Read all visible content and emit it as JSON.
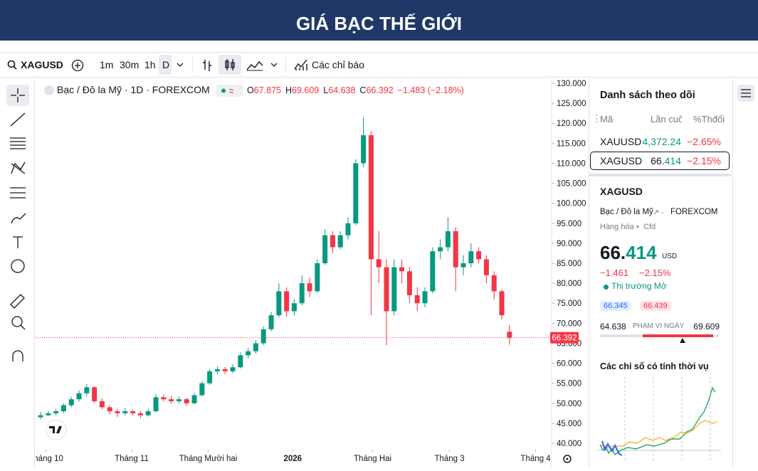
{
  "header": {
    "title": "GIÁ BẠC THẾ GIỚI"
  },
  "toolbar": {
    "symbol": "XAGUSD",
    "intervals": [
      "1m",
      "30m",
      "1h",
      "D"
    ],
    "indicators": "Các chỉ báo"
  },
  "chart_data": {
    "type": "candlestick",
    "legend": {
      "name": "Bạc / Đô la Mỹ · 1D · FOREXCOM",
      "ohlc": [
        {
          "prefix": "O",
          "value": 67.875
        },
        {
          "prefix": "H",
          "value": 69.609
        },
        {
          "prefix": "L",
          "value": 64.638
        },
        {
          "prefix": "C",
          "value": 66.392
        }
      ],
      "change": "−1.483 (−2.18%)"
    },
    "up_color": "#089981",
    "down_color": "#f23645",
    "candles": [
      [
        46.5,
        47.8,
        46,
        47
      ],
      [
        47,
        48,
        46.8,
        47.5
      ],
      [
        47.5,
        48.6,
        47,
        48
      ],
      [
        48,
        50,
        47.6,
        49.5
      ],
      [
        49.5,
        51.6,
        49,
        51
      ],
      [
        51,
        53.2,
        50.4,
        52.5
      ],
      [
        52.5,
        54.8,
        51.8,
        54
      ],
      [
        54,
        54.3,
        50,
        50.5
      ],
      [
        50.5,
        51.2,
        48.5,
        49
      ],
      [
        49,
        49.6,
        47.2,
        48
      ],
      [
        48,
        48.6,
        46.6,
        47.5
      ],
      [
        47.5,
        48.9,
        47,
        48
      ],
      [
        48,
        48.4,
        46.9,
        47.5
      ],
      [
        47.5,
        48.1,
        46.3,
        47
      ],
      [
        47,
        48.6,
        46.7,
        48
      ],
      [
        48,
        52.3,
        47.8,
        51.5
      ],
      [
        51.5,
        52.2,
        50.4,
        51
      ],
      [
        51,
        51.8,
        49.9,
        50.5
      ],
      [
        50.5,
        51.7,
        50,
        51
      ],
      [
        51,
        51.4,
        49.3,
        50
      ],
      [
        50,
        52.6,
        49.8,
        52
      ],
      [
        52,
        55.6,
        51.7,
        55
      ],
      [
        55,
        58.6,
        54.6,
        58
      ],
      [
        58,
        59.2,
        57.3,
        58.5
      ],
      [
        58.5,
        59.1,
        57.2,
        58
      ],
      [
        58,
        59.7,
        57.5,
        59
      ],
      [
        59,
        62.7,
        58.7,
        62
      ],
      [
        62,
        63.8,
        61.2,
        63
      ],
      [
        63,
        65.8,
        62.4,
        65
      ],
      [
        65,
        69.2,
        64.6,
        68.5
      ],
      [
        68.5,
        72.8,
        68,
        72
      ],
      [
        72,
        80,
        71.5,
        78
      ],
      [
        78,
        79,
        71.6,
        73
      ],
      [
        73,
        76,
        72,
        75
      ],
      [
        75,
        82,
        74.5,
        80
      ],
      [
        80,
        81.5,
        76.5,
        78
      ],
      [
        78,
        86,
        77.5,
        85
      ],
      [
        85,
        93.5,
        84.6,
        92
      ],
      [
        92,
        93,
        87.5,
        89
      ],
      [
        89,
        93,
        88.5,
        92
      ],
      [
        92,
        96.5,
        91,
        95
      ],
      [
        95,
        111,
        94.5,
        110
      ],
      [
        110,
        121.5,
        109,
        117
      ],
      [
        117,
        118,
        72,
        86
      ],
      [
        86,
        93,
        80,
        84
      ],
      [
        84,
        86,
        64.5,
        73
      ],
      [
        73,
        86,
        72,
        84
      ],
      [
        84,
        86,
        80,
        83
      ],
      [
        83,
        84,
        75,
        77
      ],
      [
        77,
        79,
        73,
        75
      ],
      [
        75,
        79,
        74,
        78
      ],
      [
        78,
        89,
        77.5,
        88
      ],
      [
        88,
        91,
        86,
        89
      ],
      [
        89,
        96.5,
        88,
        93
      ],
      [
        93,
        94,
        78,
        84
      ],
      [
        84,
        87,
        82,
        85
      ],
      [
        85,
        90,
        84,
        88
      ],
      [
        88,
        89,
        85,
        86
      ],
      [
        86,
        87,
        80,
        82
      ],
      [
        82,
        83,
        76,
        78
      ],
      [
        78,
        78.5,
        71,
        72
      ],
      [
        67.875,
        69.609,
        64.638,
        66.392
      ]
    ],
    "xlim": [
      -0.65,
      66.48
    ],
    "xticks": [
      {
        "value": 0.7,
        "label": "Tháng 10"
      },
      {
        "value": 11.85,
        "label": "Tháng 11"
      },
      {
        "value": 21.8,
        "label": "Tháng Mười hai"
      },
      {
        "value": 32.8,
        "label": "2026"
      },
      {
        "value": 43.2,
        "label": "Tháng Hai"
      },
      {
        "value": 53.2,
        "label": "Tháng 3"
      },
      {
        "value": 64.4,
        "label": "Tháng 4"
      }
    ],
    "ylim": [
      38.4,
      131.25
    ],
    "yticks": [
      {
        "value": 40,
        "label": "40.000"
      },
      {
        "value": 45,
        "label": "45.000"
      },
      {
        "value": 50,
        "label": "50.000"
      },
      {
        "value": 55,
        "label": "55.000"
      },
      {
        "value": 60,
        "label": "60.000"
      },
      {
        "value": 65,
        "label": "65.000"
      },
      {
        "value": 70,
        "label": "70.000"
      },
      {
        "value": 75,
        "label": "75.000"
      },
      {
        "value": 80,
        "label": "80.000"
      },
      {
        "value": 85,
        "label": "85.000"
      },
      {
        "value": 90,
        "label": "90.000"
      },
      {
        "value": 95,
        "label": "95.000"
      },
      {
        "value": 100,
        "label": "100.000"
      },
      {
        "value": 105,
        "label": "105.000"
      },
      {
        "value": 110,
        "label": "110.000"
      },
      {
        "value": 115,
        "label": "115.000"
      },
      {
        "value": 120,
        "label": "120.000"
      },
      {
        "value": 125,
        "label": "125.000"
      },
      {
        "value": 130,
        "label": "130.000"
      }
    ]
  },
  "watchlist": {
    "title": "Danh sách theo dõi",
    "columns": [
      "Mã",
      "Lần cuối",
      "%Thđổi"
    ],
    "rows": [
      [
        "XAUUSD",
        "4,372.24",
        "−2.65%"
      ],
      [
        "XAGUSD",
        "66.414",
        "−2.15%"
      ]
    ]
  },
  "details": {
    "symbol": "XAGUSD",
    "description": "Bạc / Đô la Mỹ",
    "exchange": "FOREXCOM",
    "tags": [
      "Hàng hóa",
      "Cfd"
    ],
    "price": "66.414",
    "currency": "USD",
    "change": "−1.461",
    "change_percent": "−2.15%",
    "status": "Thị trường Mở",
    "bid": "66.345",
    "ask": "66.439",
    "range_low": 64.638,
    "range_label": "PHẠM VI NGÀY",
    "range_high": 69.609,
    "current": 66.392,
    "seasonal_title": "Các chỉ số có tính thời vụ"
  }
}
